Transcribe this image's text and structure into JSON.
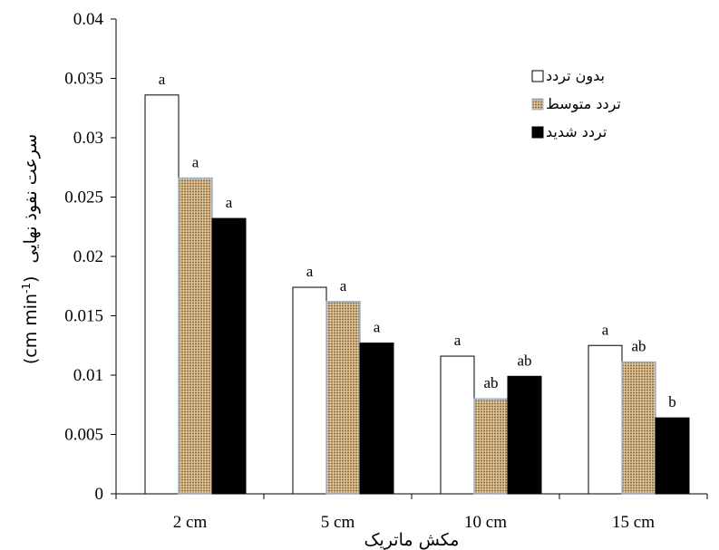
{
  "chart_data": {
    "type": "bar",
    "categories": [
      "2 cm",
      "5 cm",
      "10 cm",
      "15 cm"
    ],
    "series": [
      {
        "name": "بدون تردد",
        "values": [
          0.0336,
          0.0174,
          0.0116,
          0.0125
        ],
        "letters": [
          "a",
          "a",
          "a",
          "a"
        ],
        "style": "white"
      },
      {
        "name": "تردد متوسط",
        "values": [
          0.0266,
          0.0162,
          0.008,
          0.0111
        ],
        "letters": [
          "a",
          "a",
          "ab",
          "ab"
        ],
        "style": "burlap"
      },
      {
        "name": "تردد شدید",
        "values": [
          0.0232,
          0.0127,
          0.0099,
          0.0064
        ],
        "letters": [
          "a",
          "a",
          "ab",
          "b"
        ],
        "style": "black"
      }
    ],
    "xlabel": "مکش ماتریک",
    "ylabel": "سرعت نفوذ نهایی",
    "ylabel_unit": "(cm min",
    "ylabel_unit_sup": "-1",
    "ylabel_unit_close": ")",
    "yticks": [
      "0",
      "0.005",
      "0.01",
      "0.015",
      "0.02",
      "0.025",
      "0.03",
      "0.035",
      "0.04"
    ],
    "ylim": [
      0,
      0.04
    ],
    "grid": false,
    "legend_position": "top-right",
    "colors": {
      "white": "#ffffff",
      "burlap": "#c9a977",
      "black": "#000000",
      "outline": "#000000"
    }
  }
}
